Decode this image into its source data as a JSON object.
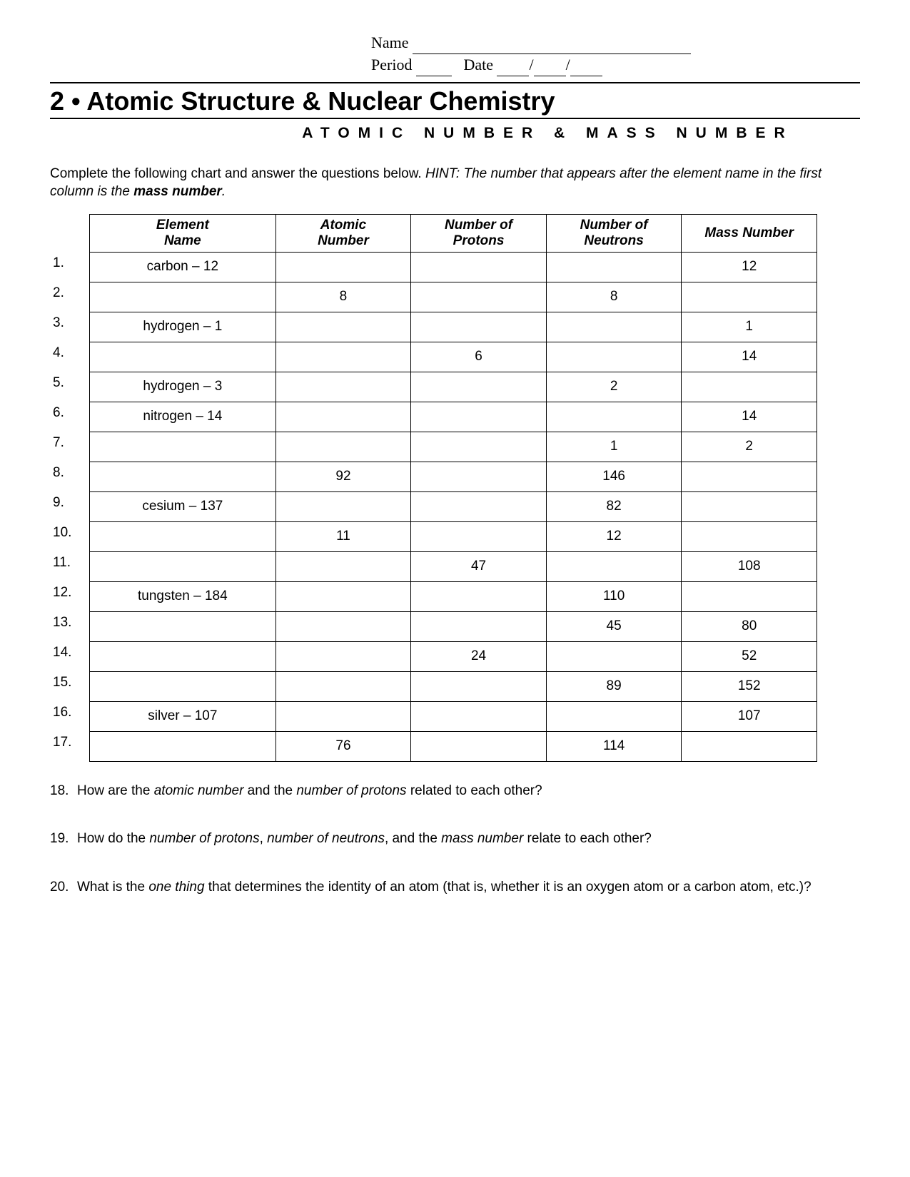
{
  "header": {
    "name_label": "Name",
    "period_label": "Period",
    "date_label": "Date"
  },
  "title": {
    "chapter": "2",
    "bullet": "•",
    "main": "Atomic Structure & Nuclear Chemistry",
    "subtitle": "ATOMIC NUMBER & MASS NUMBER"
  },
  "instructions": {
    "lead": "Complete the following chart and answer the questions below.  ",
    "hint_prefix": "HINT: The number that appears after the element name in the first column is the ",
    "hint_bold": "mass number",
    "hint_suffix": "."
  },
  "table": {
    "columns": [
      "Element\nName",
      "Atomic\nNumber",
      "Number of\nProtons",
      "Number of\nNeutrons",
      "Mass Number"
    ],
    "rows": [
      {
        "n": "1.",
        "element": "carbon – 12",
        "atomic": "",
        "protons": "",
        "neutrons": "",
        "mass": "12"
      },
      {
        "n": "2.",
        "element": "",
        "atomic": "8",
        "protons": "",
        "neutrons": "8",
        "mass": ""
      },
      {
        "n": "3.",
        "element": "hydrogen – 1",
        "atomic": "",
        "protons": "",
        "neutrons": "",
        "mass": "1"
      },
      {
        "n": "4.",
        "element": "",
        "atomic": "",
        "protons": "6",
        "neutrons": "",
        "mass": "14"
      },
      {
        "n": "5.",
        "element": "hydrogen – 3",
        "atomic": "",
        "protons": "",
        "neutrons": "2",
        "mass": ""
      },
      {
        "n": "6.",
        "element": "nitrogen – 14",
        "atomic": "",
        "protons": "",
        "neutrons": "",
        "mass": "14"
      },
      {
        "n": "7.",
        "element": "",
        "atomic": "",
        "protons": "",
        "neutrons": "1",
        "mass": "2"
      },
      {
        "n": "8.",
        "element": "",
        "atomic": "92",
        "protons": "",
        "neutrons": "146",
        "mass": ""
      },
      {
        "n": "9.",
        "element": "cesium – 137",
        "atomic": "",
        "protons": "",
        "neutrons": "82",
        "mass": ""
      },
      {
        "n": "10.",
        "element": "",
        "atomic": "11",
        "protons": "",
        "neutrons": "12",
        "mass": ""
      },
      {
        "n": "11.",
        "element": "",
        "atomic": "",
        "protons": "47",
        "neutrons": "",
        "mass": "108"
      },
      {
        "n": "12.",
        "element": "tungsten – 184",
        "atomic": "",
        "protons": "",
        "neutrons": "110",
        "mass": ""
      },
      {
        "n": "13.",
        "element": "",
        "atomic": "",
        "protons": "",
        "neutrons": "45",
        "mass": "80"
      },
      {
        "n": "14.",
        "element": "",
        "atomic": "",
        "protons": "24",
        "neutrons": "",
        "mass": "52"
      },
      {
        "n": "15.",
        "element": "",
        "atomic": "",
        "protons": "",
        "neutrons": "89",
        "mass": "152"
      },
      {
        "n": "16.",
        "element": "silver – 107",
        "atomic": "",
        "protons": "",
        "neutrons": "",
        "mass": "107"
      },
      {
        "n": "17.",
        "element": "",
        "atomic": "76",
        "protons": "",
        "neutrons": "114",
        "mass": ""
      }
    ]
  },
  "questions": [
    {
      "n": "18.",
      "parts": [
        {
          "t": "How are the ",
          "i": false
        },
        {
          "t": "atomic number",
          "i": true
        },
        {
          "t": " and the ",
          "i": false
        },
        {
          "t": "number of protons",
          "i": true
        },
        {
          "t": " related to each other?",
          "i": false
        }
      ]
    },
    {
      "n": "19.",
      "parts": [
        {
          "t": "How do the ",
          "i": false
        },
        {
          "t": "number of protons",
          "i": true
        },
        {
          "t": ", ",
          "i": false
        },
        {
          "t": "number of neutrons",
          "i": true
        },
        {
          "t": ", and the ",
          "i": false
        },
        {
          "t": "mass number",
          "i": true
        },
        {
          "t": " relate to each other?",
          "i": false
        }
      ]
    },
    {
      "n": "20.",
      "parts": [
        {
          "t": "What is the ",
          "i": false
        },
        {
          "t": "one thing",
          "i": true
        },
        {
          "t": " that determines the identity of an atom (that is, whether it is an oxygen atom or a carbon atom, etc.)?",
          "i": false
        }
      ]
    }
  ]
}
